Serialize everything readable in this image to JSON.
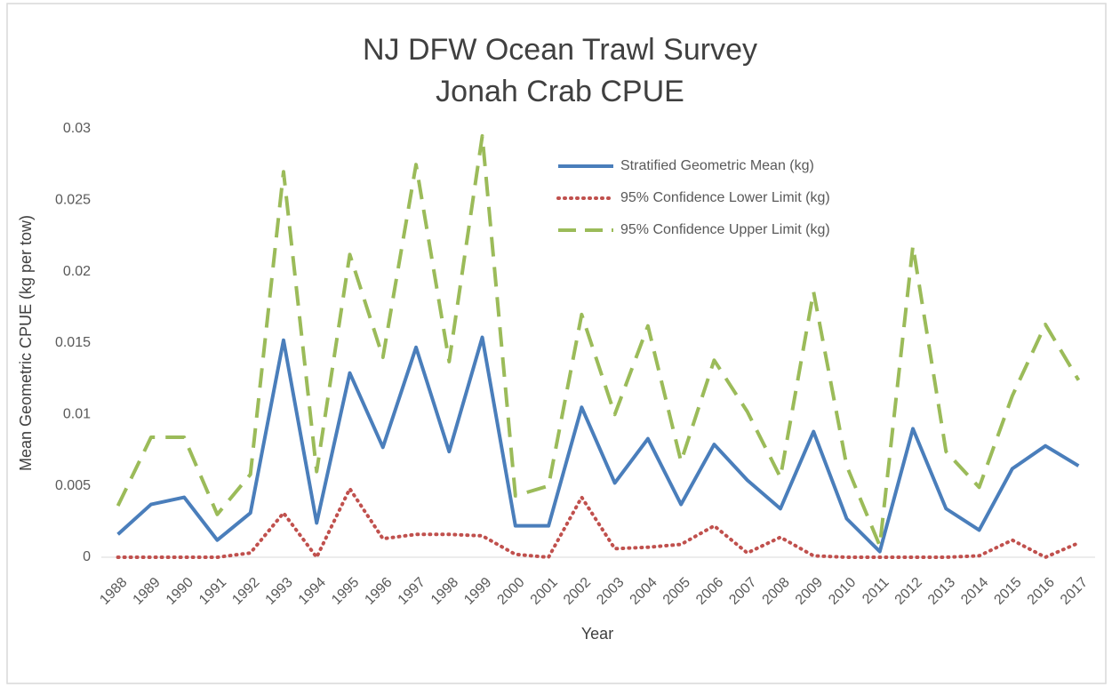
{
  "chart_data": {
    "type": "line",
    "title": [
      "NJ DFW Ocean Trawl Survey",
      "Jonah Crab CPUE"
    ],
    "x_label": "Year",
    "y_label": "Mean Geometric CPUE (kg per tow)",
    "categories": [
      "1988",
      "1989",
      "1990",
      "1991",
      "1992",
      "1993",
      "1994",
      "1995",
      "1996",
      "1997",
      "1998",
      "1999",
      "2000",
      "2001",
      "2002",
      "2003",
      "2004",
      "2005",
      "2006",
      "2007",
      "2008",
      "2009",
      "2010",
      "2011",
      "2012",
      "2013",
      "2014",
      "2015",
      "2016",
      "2017"
    ],
    "series": [
      {
        "name": "Stratified Geometric Mean (kg)",
        "color": "#4a7ebb",
        "style": "solid",
        "values": [
          0.0016,
          0.0037,
          0.0042,
          0.0012,
          0.0031,
          0.0152,
          0.0024,
          0.0129,
          0.0077,
          0.0147,
          0.0074,
          0.0154,
          0.0022,
          0.0022,
          0.0105,
          0.0052,
          0.0083,
          0.0037,
          0.0079,
          0.0054,
          0.0034,
          0.0088,
          0.0027,
          0.0004,
          0.009,
          0.0034,
          0.0019,
          0.0062,
          0.0078,
          0.0064
        ]
      },
      {
        "name": "95% Confidence Lower Limit (kg)",
        "color": "#c0504d",
        "style": "dotted",
        "values": [
          0,
          0,
          0,
          0,
          0.0003,
          0.0031,
          0,
          0.0048,
          0.0013,
          0.0016,
          0.0016,
          0.0015,
          0.0002,
          0,
          0.0042,
          0.0006,
          0.0007,
          0.0009,
          0.0022,
          0.0003,
          0.0014,
          0.0001,
          0,
          0,
          0,
          0,
          0.0001,
          0.0012,
          0,
          0.001
        ]
      },
      {
        "name": "95% Confidence Upper Limit (kg)",
        "color": "#9bbb59",
        "style": "dashed",
        "values": [
          0.0036,
          0.0084,
          0.0084,
          0.003,
          0.0058,
          0.027,
          0.006,
          0.0212,
          0.014,
          0.0275,
          0.0137,
          0.0295,
          0.0043,
          0.005,
          0.017,
          0.01,
          0.0162,
          0.0067,
          0.0138,
          0.0102,
          0.0056,
          0.0186,
          0.0064,
          0.0008,
          0.0218,
          0.0074,
          0.0049,
          0.0113,
          0.0163,
          0.0124
        ]
      }
    ],
    "ylim": [
      0,
      0.03
    ],
    "yticks": [
      0,
      0.005,
      0.01,
      0.015,
      0.02,
      0.025,
      0.03
    ],
    "grid": false,
    "legend": "upper-center"
  }
}
